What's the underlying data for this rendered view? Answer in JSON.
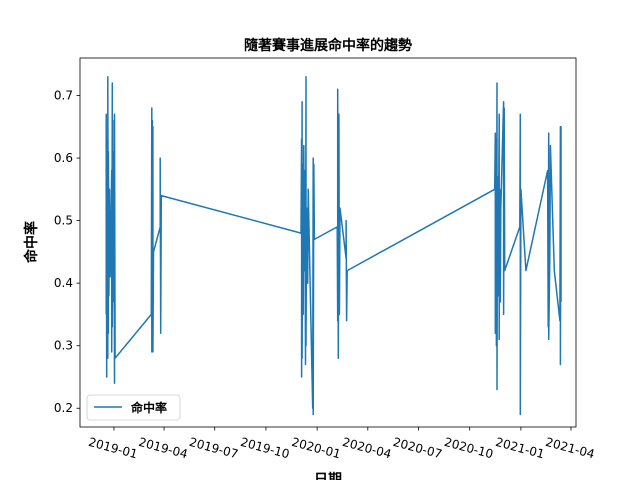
{
  "chart_data": {
    "type": "line",
    "title": "隨著賽事進展命中率的趨勢",
    "xlabel": "日期",
    "ylabel": "命中率",
    "xlim": [
      "2018-11-01",
      "2021-04-10"
    ],
    "ylim": [
      0.17,
      0.76
    ],
    "x_ticks": [
      "2019-01",
      "2019-04",
      "2019-07",
      "2019-10",
      "2020-01",
      "2020-04",
      "2020-07",
      "2020-10",
      "2021-01",
      "2021-04"
    ],
    "y_ticks": [
      0.2,
      0.3,
      0.4,
      0.5,
      0.6,
      0.7
    ],
    "grid": false,
    "legend": "lower-left",
    "series": [
      {
        "name": "命中率",
        "color": "#1f77b4",
        "points": [
          [
            "2018-12-18",
            0.35
          ],
          [
            "2018-12-18",
            0.67
          ],
          [
            "2018-12-19",
            0.25
          ],
          [
            "2018-12-19",
            0.63
          ],
          [
            "2018-12-20",
            0.33
          ],
          [
            "2018-12-20",
            0.61
          ],
          [
            "2018-12-21",
            0.28
          ],
          [
            "2018-12-21",
            0.73
          ],
          [
            "2018-12-22",
            0.32
          ],
          [
            "2018-12-22",
            0.61
          ],
          [
            "2018-12-23",
            0.38
          ],
          [
            "2018-12-24",
            0.55
          ],
          [
            "2018-12-25",
            0.41
          ],
          [
            "2018-12-27",
            0.52
          ],
          [
            "2018-12-28",
            0.58
          ],
          [
            "2018-12-28",
            0.29
          ],
          [
            "2018-12-29",
            0.72
          ],
          [
            "2018-12-29",
            0.33
          ],
          [
            "2018-12-30",
            0.45
          ],
          [
            "2018-12-31",
            0.61
          ],
          [
            "2019-01-01",
            0.37
          ],
          [
            "2019-01-01",
            0.66
          ],
          [
            "2019-01-02",
            0.24
          ],
          [
            "2019-01-02",
            0.67
          ],
          [
            "2019-01-03",
            0.28
          ],
          [
            "2019-03-09",
            0.35
          ],
          [
            "2019-03-10",
            0.68
          ],
          [
            "2019-03-10",
            0.29
          ],
          [
            "2019-03-11",
            0.66
          ],
          [
            "2019-03-11",
            0.42
          ],
          [
            "2019-03-12",
            0.65
          ],
          [
            "2019-03-12",
            0.29
          ],
          [
            "2019-03-13",
            0.45
          ],
          [
            "2019-03-25",
            0.49
          ],
          [
            "2019-03-25",
            0.6
          ],
          [
            "2019-03-26",
            0.32
          ],
          [
            "2019-03-27",
            0.54
          ],
          [
            "2019-12-03",
            0.48
          ],
          [
            "2019-12-04",
            0.63
          ],
          [
            "2019-12-04",
            0.25
          ],
          [
            "2019-12-05",
            0.69
          ],
          [
            "2019-12-05",
            0.28
          ],
          [
            "2019-12-06",
            0.59
          ],
          [
            "2019-12-07",
            0.35
          ],
          [
            "2019-12-08",
            0.62
          ],
          [
            "2019-12-09",
            0.42
          ],
          [
            "2019-12-10",
            0.58
          ],
          [
            "2019-12-11",
            0.27
          ],
          [
            "2019-12-12",
            0.73
          ],
          [
            "2019-12-12",
            0.3
          ],
          [
            "2019-12-13",
            0.52
          ],
          [
            "2019-12-15",
            0.4
          ],
          [
            "2019-12-16",
            0.55
          ],
          [
            "2019-12-24",
            0.2
          ],
          [
            "2019-12-25",
            0.6
          ],
          [
            "2019-12-25",
            0.19
          ],
          [
            "2019-12-26",
            0.59
          ],
          [
            "2019-12-27",
            0.47
          ],
          [
            "2020-02-06",
            0.49
          ],
          [
            "2020-02-07",
            0.34
          ],
          [
            "2020-02-07",
            0.71
          ],
          [
            "2020-02-08",
            0.28
          ],
          [
            "2020-02-09",
            0.67
          ],
          [
            "2020-02-10",
            0.35
          ],
          [
            "2020-02-11",
            0.52
          ],
          [
            "2020-02-22",
            0.44
          ],
          [
            "2020-02-22",
            0.5
          ],
          [
            "2020-02-23",
            0.34
          ],
          [
            "2020-02-24",
            0.42
          ],
          [
            "2020-11-15",
            0.55
          ],
          [
            "2020-11-16",
            0.64
          ],
          [
            "2020-11-16",
            0.32
          ],
          [
            "2020-11-17",
            0.63
          ],
          [
            "2020-11-18",
            0.3
          ],
          [
            "2020-11-19",
            0.72
          ],
          [
            "2020-11-19",
            0.23
          ],
          [
            "2020-11-20",
            0.57
          ],
          [
            "2020-11-21",
            0.38
          ],
          [
            "2020-11-23",
            0.67
          ],
          [
            "2020-11-23",
            0.31
          ],
          [
            "2020-11-24",
            0.55
          ],
          [
            "2020-11-25",
            0.37
          ],
          [
            "2020-11-26",
            0.52
          ],
          [
            "2020-12-01",
            0.69
          ],
          [
            "2020-12-01",
            0.35
          ],
          [
            "2020-12-02",
            0.68
          ],
          [
            "2020-12-03",
            0.42
          ],
          [
            "2020-12-30",
            0.49
          ],
          [
            "2020-12-31",
            0.67
          ],
          [
            "2020-12-31",
            0.19
          ],
          [
            "2021-01-01",
            0.55
          ],
          [
            "2021-01-10",
            0.42
          ],
          [
            "2021-02-18",
            0.58
          ],
          [
            "2021-02-19",
            0.33
          ],
          [
            "2021-02-20",
            0.64
          ],
          [
            "2021-02-20",
            0.31
          ],
          [
            "2021-02-22",
            0.44
          ],
          [
            "2021-02-23",
            0.62
          ],
          [
            "2021-03-02",
            0.42
          ],
          [
            "2021-03-12",
            0.34
          ],
          [
            "2021-03-13",
            0.65
          ],
          [
            "2021-03-13",
            0.27
          ],
          [
            "2021-03-14",
            0.65
          ],
          [
            "2021-03-14",
            0.37
          ]
        ]
      }
    ]
  }
}
